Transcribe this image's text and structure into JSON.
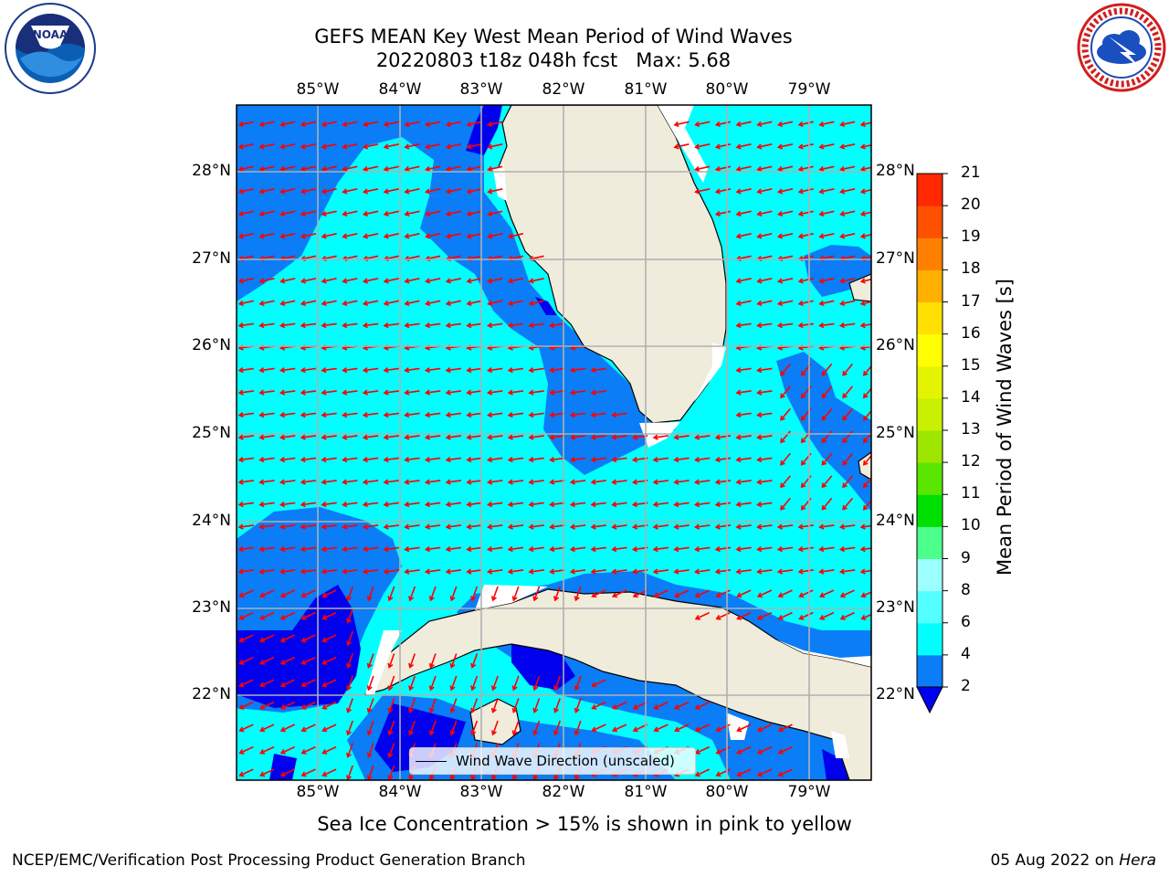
{
  "header": {
    "title_line1": "GEFS MEAN Key West Mean Period of Wind Waves",
    "title_line2": "20220803 t18z 048h fcst   Max: 5.68"
  },
  "logos": {
    "left": {
      "icon": "noaa-logo",
      "text": "NOAA"
    },
    "right": {
      "icon": "nws-logo"
    }
  },
  "map": {
    "lon_labels": [
      "85°W",
      "84°W",
      "83°W",
      "82°W",
      "81°W",
      "80°W",
      "79°W"
    ],
    "lat_labels": [
      "28°N",
      "27°N",
      "26°N",
      "25°N",
      "24°N",
      "23°N",
      "22°N"
    ],
    "legend_label": "Wind Wave Direction (unscaled)",
    "colors": {
      "land": "#efecdc",
      "water_2_4": "#0a7df7",
      "water_4_6": "#00ffff",
      "water_below_2": "#0000ee",
      "arrow": "#ff0000",
      "grid": "#b0b0b0"
    }
  },
  "colorbar": {
    "label": "Mean Period of Wind Waves [s]",
    "ticks": [
      "2",
      "4",
      "6",
      "8",
      "9",
      "10",
      "11",
      "12",
      "13",
      "14",
      "15",
      "16",
      "17",
      "18",
      "19",
      "20",
      "21"
    ],
    "colors": [
      "#0a7df7",
      "#00ffff",
      "#53ffff",
      "#9effff",
      "#4cff8a",
      "#00e000",
      "#5ae600",
      "#9ee600",
      "#c8f000",
      "#e4f400",
      "#ffff00",
      "#ffe000",
      "#ffb000",
      "#ff8000",
      "#ff5000",
      "#ff2800",
      "#ff0000"
    ],
    "extend_color": "#0000ee"
  },
  "caption": "Sea Ice Concentration > 15% is shown in pink to yellow",
  "footer": {
    "left": "NCEP/EMC/Verification Post Processing Product Generation Branch",
    "right_date": "05 Aug 2022 on",
    "right_host": "Hera"
  }
}
